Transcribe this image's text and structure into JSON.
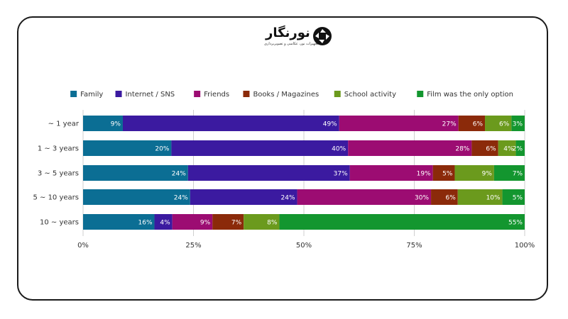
{
  "logo": {
    "text": "نورنگار",
    "tagline": "تجهیزات نور، عکاسی و تصویربرداری",
    "mark_color": "#111111"
  },
  "chart_data": {
    "type": "bar",
    "orientation": "horizontal",
    "stacked": true,
    "percent_stacked": true,
    "categories": [
      "~ 1 year",
      "1 ~ 3 years",
      "3 ~ 5 years",
      "5 ~ 10 years",
      "10 ~ years"
    ],
    "series": [
      {
        "name": "Family",
        "color": "#0b6e94",
        "values": [
          9,
          20,
          24,
          24,
          16
        ]
      },
      {
        "name": "Internet / SNS",
        "color": "#3b1aa0",
        "values": [
          49,
          40,
          37,
          24,
          4
        ]
      },
      {
        "name": "Friends",
        "color": "#9c0c72",
        "values": [
          27,
          28,
          19,
          30,
          9
        ]
      },
      {
        "name": "Books / Magazines",
        "color": "#8b2a0a",
        "values": [
          6,
          6,
          5,
          6,
          7
        ]
      },
      {
        "name": "School activity",
        "color": "#6b9a1d",
        "values": [
          6,
          4,
          9,
          10,
          8
        ]
      },
      {
        "name": "Film was the only option",
        "color": "#13962f",
        "values": [
          3,
          2,
          7,
          5,
          55
        ]
      }
    ],
    "x_ticks": [
      "0%",
      "25%",
      "50%",
      "75%",
      "100%"
    ],
    "xlim": [
      0,
      100
    ],
    "legend": "top",
    "grid": true,
    "data_label_suffix": "%"
  }
}
